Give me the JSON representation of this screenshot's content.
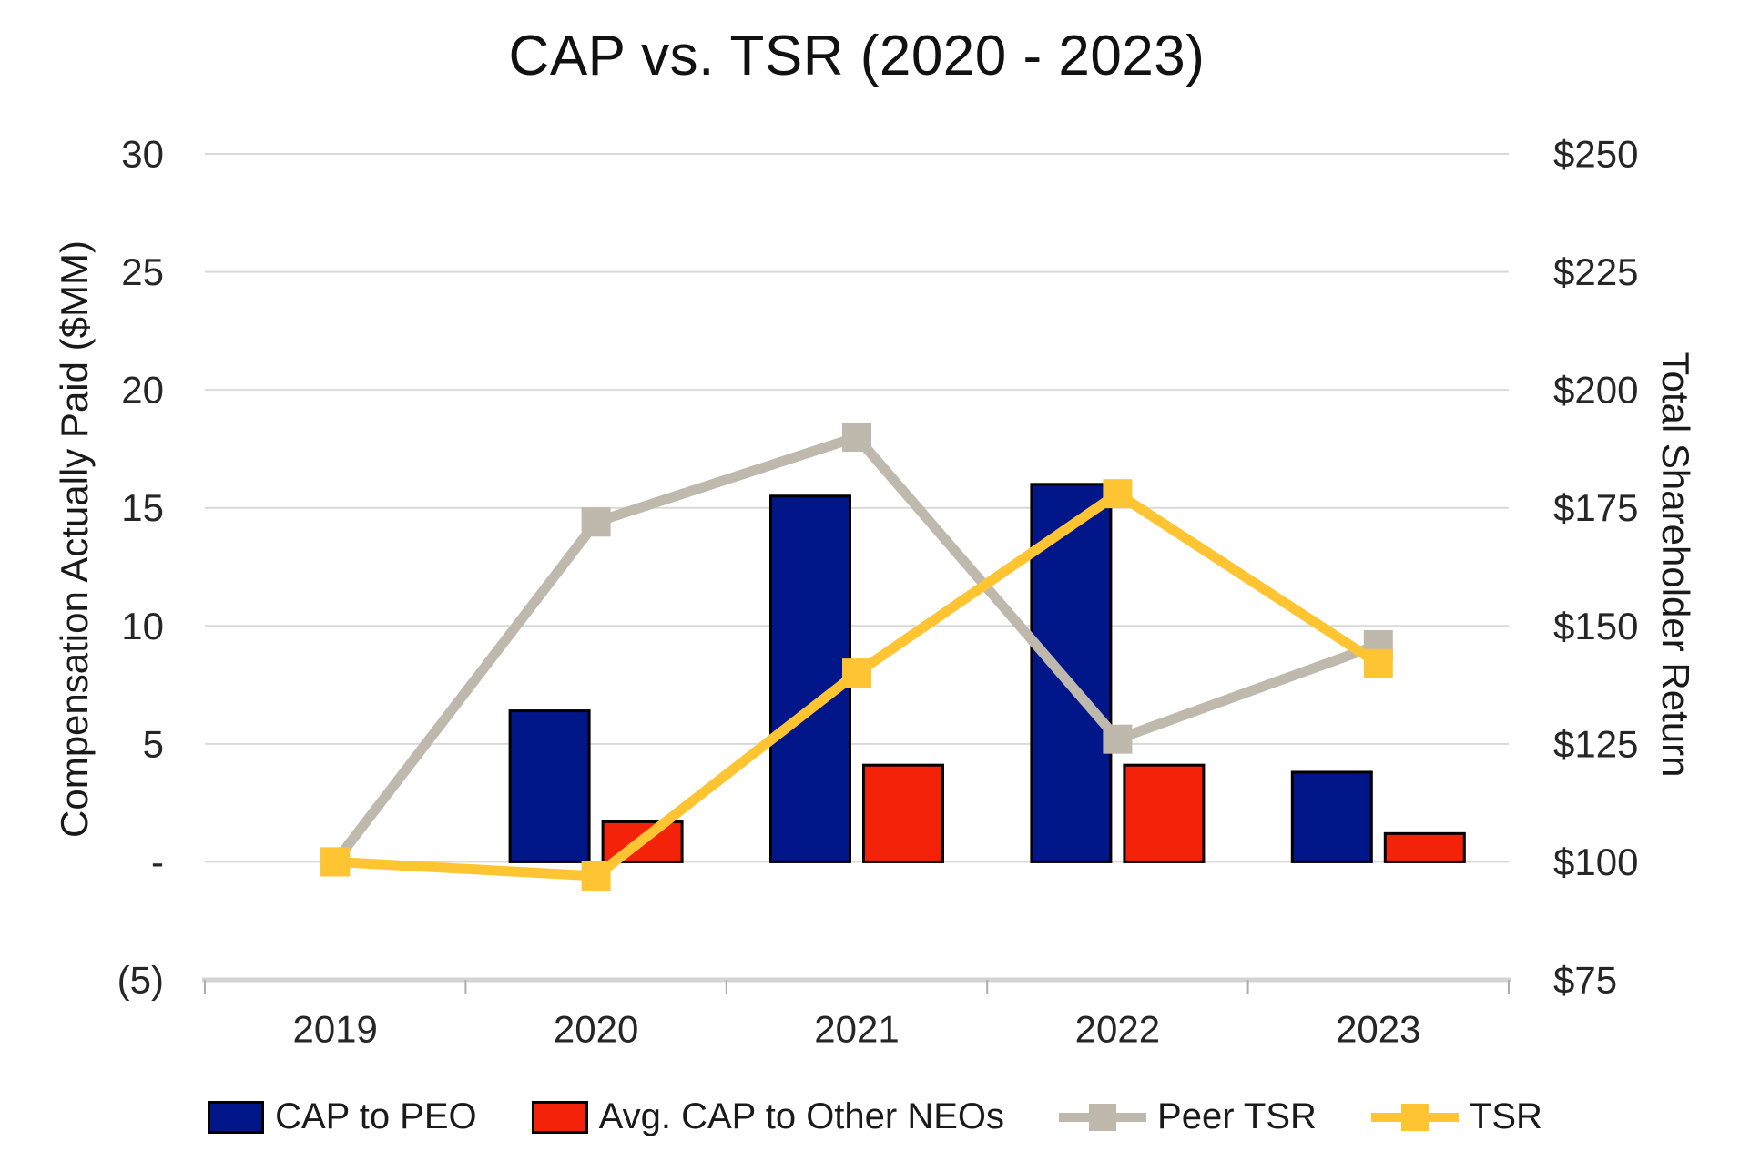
{
  "chart_data": {
    "type": "bar+line combo, dual axis",
    "title": "CAP vs. TSR (2020 - 2023)",
    "categories": [
      "2019",
      "2020",
      "2021",
      "2022",
      "2023"
    ],
    "left_axis": {
      "title": "Compensation Actually Paid ($MM)",
      "ticks": [
        {
          "label": "30",
          "value": 30
        },
        {
          "label": "25",
          "value": 25
        },
        {
          "label": "20",
          "value": 20
        },
        {
          "label": "15",
          "value": 15
        },
        {
          "label": "10",
          "value": 10
        },
        {
          "label": "5",
          "value": 5
        },
        {
          "label": "-",
          "value": 0
        },
        {
          "label": "(5)",
          "value": -5
        }
      ],
      "range": [
        -5,
        30
      ]
    },
    "right_axis": {
      "title": "Total Shareholder Return",
      "ticks": [
        {
          "label": "$250",
          "value": 250
        },
        {
          "label": "$225",
          "value": 225
        },
        {
          "label": "$200",
          "value": 200
        },
        {
          "label": "$175",
          "value": 175
        },
        {
          "label": "$150",
          "value": 150
        },
        {
          "label": "$125",
          "value": 125
        },
        {
          "label": "$100",
          "value": 100
        },
        {
          "label": "$75",
          "value": 75
        }
      ],
      "range": [
        75,
        250
      ]
    },
    "series": [
      {
        "name": "CAP to PEO",
        "type": "bar",
        "axis": "left",
        "color": "#001689",
        "values": [
          null,
          6.4,
          15.5,
          16.0,
          3.8
        ]
      },
      {
        "name": "Avg. CAP to Other NEOs",
        "type": "bar",
        "axis": "left",
        "color": "#F32208",
        "values": [
          null,
          1.7,
          4.1,
          4.1,
          1.2
        ]
      },
      {
        "name": "Peer TSR",
        "type": "line",
        "axis": "right",
        "color": "#BFB8AC",
        "values": [
          100,
          172,
          190,
          126,
          146
        ]
      },
      {
        "name": "TSR",
        "type": "line",
        "axis": "right",
        "color": "#FFC431",
        "values": [
          100,
          97,
          140,
          178,
          142
        ]
      }
    ],
    "grid": "horizontal gridlines on, light gray",
    "legend_position": "bottom center",
    "colors": {
      "gridline": "#D9D9D9",
      "axis_line": "#D4D4D4",
      "tick_stub": "#ADADAD",
      "text": "#262626",
      "bar_border": "#000000"
    }
  }
}
